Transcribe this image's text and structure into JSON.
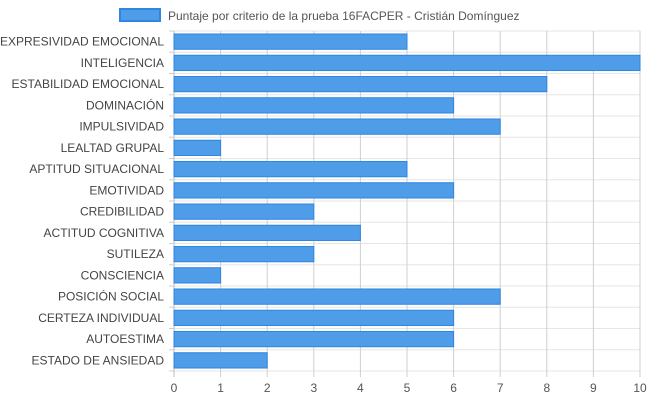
{
  "chart_data": {
    "type": "bar",
    "orientation": "horizontal",
    "categories": [
      "EXPRESIVIDAD EMOCIONAL",
      "INTELIGENCIA",
      "ESTABILIDAD EMOCIONAL",
      "DOMINACIÓN",
      "IMPULSIVIDAD",
      "LEALTAD GRUPAL",
      "APTITUD SITUACIONAL",
      "EMOTIVIDAD",
      "CREDIBILIDAD",
      "ACTITUD COGNITIVA",
      "SUTILEZA",
      "CONSCIENCIA",
      "POSICIÓN SOCIAL",
      "CERTEZA INDIVIDUAL",
      "AUTOESTIMA",
      "ESTADO DE ANSIEDAD"
    ],
    "series": [
      {
        "name": "Puntaje por criterio de la prueba 16FACPER - Cristián Domínguez",
        "values": [
          5,
          10,
          8,
          6,
          7,
          1,
          5,
          6,
          3,
          4,
          3,
          1,
          7,
          6,
          6,
          2
        ],
        "color": "#4f9ce9",
        "border_color": "#2f86e0"
      }
    ],
    "xlim": [
      0,
      10
    ],
    "x_ticks": [
      "0",
      "1",
      "2",
      "3",
      "4",
      "5",
      "6",
      "7",
      "8",
      "9",
      "10"
    ],
    "grid": true,
    "legend_position": "top"
  }
}
